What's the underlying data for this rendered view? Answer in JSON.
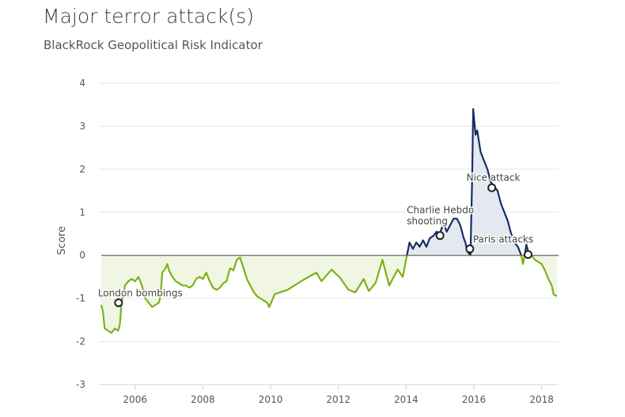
{
  "chart_data": {
    "type": "line",
    "title": "Major terror attack(s)",
    "subtitle": "BlackRock Geopolitical Risk Indicator",
    "xlabel": "",
    "ylabel": "Score",
    "xlim": [
      2005.0,
      2018.5
    ],
    "ylim": [
      -3,
      4
    ],
    "xticks": [
      2006,
      2008,
      2010,
      2012,
      2014,
      2016,
      2018
    ],
    "yticks": [
      -3,
      -2,
      -1,
      0,
      1,
      2,
      3,
      4
    ],
    "grid": true,
    "legend": "none",
    "colors": {
      "positive": "#142f66",
      "negative": "#7ab317",
      "positive_fill": "#e4e9f1",
      "negative_fill": "#f1f6e4",
      "zero_line": "#666666",
      "grid": "#e3e6ea"
    },
    "series": [
      {
        "x": [
          2005.0,
          2005.05,
          2005.1,
          2005.2,
          2005.3,
          2005.4,
          2005.5,
          2005.55,
          2005.6,
          2005.7,
          2005.8,
          2005.9,
          2006.0,
          2006.1,
          2006.2,
          2006.3,
          2006.4,
          2006.5,
          2006.6,
          2006.7,
          2006.75,
          2006.8,
          2006.9,
          2006.95,
          2007.0,
          2007.1,
          2007.2,
          2007.3,
          2007.4,
          2007.5,
          2007.6,
          2007.7,
          2007.8,
          2007.9,
          2008.0,
          2008.1,
          2008.2,
          2008.3,
          2008.4,
          2008.5,
          2008.6,
          2008.7,
          2008.8,
          2008.9,
          2009.0,
          2009.1,
          2009.2,
          2009.3,
          2009.4,
          2009.5,
          2009.6,
          2009.7,
          2009.8,
          2009.9,
          2009.96,
          2010.12,
          2010.5,
          2010.9,
          2011.35,
          2011.5,
          2011.8,
          2012.05,
          2012.3,
          2012.5,
          2012.75,
          2012.9,
          2013.1,
          2013.3,
          2013.5,
          2013.75,
          2013.9,
          2014.0,
          2014.1,
          2014.2,
          2014.3,
          2014.4,
          2014.5,
          2014.6,
          2014.7,
          2014.8,
          2014.9,
          2015.0,
          2015.1,
          2015.2,
          2015.4,
          2015.5,
          2015.6,
          2015.7,
          2015.75,
          2015.8,
          2015.85,
          2015.9,
          2015.95,
          2015.98,
          2016.05,
          2016.1,
          2016.2,
          2016.3,
          2016.4,
          2016.5,
          2016.6,
          2016.7,
          2016.8,
          2016.9,
          2017.0,
          2017.1,
          2017.2,
          2017.3,
          2017.4,
          2017.45,
          2017.5,
          2017.55,
          2017.6,
          2017.7,
          2017.8,
          2017.9,
          2018.0,
          2018.1,
          2018.2,
          2018.3,
          2018.35,
          2018.45
        ],
        "y": [
          -1.15,
          -1.3,
          -1.7,
          -1.75,
          -1.8,
          -1.7,
          -1.75,
          -1.6,
          -1.1,
          -0.7,
          -0.6,
          -0.55,
          -0.6,
          -0.5,
          -0.7,
          -1.0,
          -1.1,
          -1.2,
          -1.15,
          -1.1,
          -0.95,
          -0.4,
          -0.3,
          -0.2,
          -0.35,
          -0.5,
          -0.6,
          -0.65,
          -0.7,
          -0.7,
          -0.75,
          -0.7,
          -0.55,
          -0.5,
          -0.55,
          -0.4,
          -0.6,
          -0.75,
          -0.8,
          -0.75,
          -0.65,
          -0.6,
          -0.3,
          -0.35,
          -0.1,
          -0.05,
          -0.3,
          -0.55,
          -0.7,
          -0.85,
          -0.95,
          -1.0,
          -1.05,
          -1.1,
          -1.2,
          -0.9,
          -0.8,
          -0.6,
          -0.4,
          -0.6,
          -0.33,
          -0.52,
          -0.8,
          -0.86,
          -0.55,
          -0.83,
          -0.64,
          -0.1,
          -0.7,
          -0.33,
          -0.5,
          -0.1,
          0.3,
          0.15,
          0.3,
          0.2,
          0.35,
          0.2,
          0.4,
          0.45,
          0.55,
          0.5,
          0.75,
          0.55,
          0.85,
          0.85,
          0.7,
          0.4,
          0.3,
          0.1,
          0.05,
          0.0,
          1.8,
          3.4,
          2.8,
          2.9,
          2.4,
          2.2,
          2.0,
          1.7,
          1.6,
          1.5,
          1.2,
          1.0,
          0.8,
          0.5,
          0.3,
          0.2,
          0.0,
          -0.2,
          0.0,
          0.25,
          0.1,
          0.0,
          -0.1,
          -0.15,
          -0.2,
          -0.35,
          -0.55,
          -0.7,
          -0.9,
          -0.95
        ]
      }
    ],
    "annotations": [
      {
        "label": "London bombings",
        "x": 2005.51,
        "y": -1.1
      },
      {
        "label": "Charlie Hebdo",
        "label2": "shooting",
        "x": 2015.0,
        "y": 0.46
      },
      {
        "label": "Paris attacks",
        "x": 2015.88,
        "y": 0.15
      },
      {
        "label": "Nice attack",
        "x": 2016.53,
        "y": 1.57
      },
      {
        "label": "",
        "x": 2017.6,
        "y": 0.02
      }
    ]
  }
}
